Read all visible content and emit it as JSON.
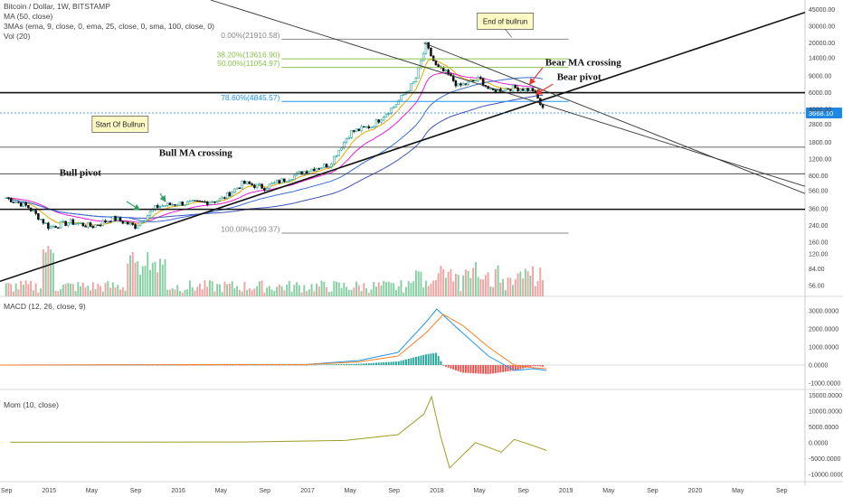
{
  "legend": {
    "symbol": "Bitcoin / Dollar, 1W, BITSTAMP",
    "ma": "MA (50, close)",
    "mas3": "3MAs (ema, 9, close, 0, ema, 25, close, 0, sma, 100, close, 0)",
    "vol": "Vol (20)",
    "macd": "MACD (12, 26, close, 9)",
    "mom": "Mom (10, close)"
  },
  "colors": {
    "candle_up": "#26a69a",
    "candle_down": "#111111",
    "ema9": "#e6a700",
    "ema25": "#e91ed0",
    "sma100": "#3f51b5",
    "ma50": "#3b6fd1",
    "vol_up": "#86cfa3",
    "vol_down": "#f1a3a3",
    "macd_line": "#2196f3",
    "signal_line": "#ff7f27",
    "hist_up": "#26a69a",
    "hist_down": "#ef5350",
    "mom_line": "#9e9d24",
    "fib_gray": "#888888",
    "fib_green": "#8bc34a",
    "fib_blue": "#2196f3",
    "price_tag": "#1e88e5",
    "arrow_green": "#2e9e5e",
    "arrow_red": "#e53935"
  },
  "chart_data": [
    {
      "type": "candlestick",
      "title": "Bitcoin / Dollar, 1W, BITSTAMP",
      "y_scale": "log",
      "y_ticks": [
        "45000.00",
        "30000.00",
        "20000.00",
        "14000.00",
        "9000.00",
        "6000.00",
        "4000.00",
        "2800.00",
        "1800.00",
        "1200.00",
        "800.00",
        "560.00",
        "360.00",
        "240.00",
        "160.00",
        "120.00",
        "84.00",
        "56.00"
      ],
      "y_tick_values": [
        45000,
        30000,
        20000,
        14000,
        9000,
        6000,
        4000,
        2800,
        1800,
        1200,
        800,
        560,
        360,
        240,
        160,
        120,
        84,
        56
      ],
      "x_ticks": [
        "Sep",
        "2015",
        "May",
        "Sep",
        "2016",
        "May",
        "Sep",
        "2017",
        "May",
        "Sep",
        "2018",
        "May",
        "Sep",
        "2019",
        "May",
        "Sep",
        "2020",
        "May",
        "Sep"
      ],
      "last_price": "3668.10",
      "price_path": [
        [
          "2014-09",
          470
        ],
        [
          "2014-11",
          380
        ],
        [
          "2015-01",
          230
        ],
        [
          "2015-03",
          260
        ],
        [
          "2015-05",
          235
        ],
        [
          "2015-07",
          285
        ],
        [
          "2015-09",
          235
        ],
        [
          "2015-11",
          380
        ],
        [
          "2016-01",
          410
        ],
        [
          "2016-03",
          415
        ],
        [
          "2016-05",
          450
        ],
        [
          "2016-07",
          670
        ],
        [
          "2016-09",
          605
        ],
        [
          "2016-11",
          740
        ],
        [
          "2017-01",
          920
        ],
        [
          "2017-03",
          1050
        ],
        [
          "2017-05",
          2300
        ],
        [
          "2017-07",
          2700
        ],
        [
          "2017-09",
          4300
        ],
        [
          "2017-11",
          8000
        ],
        [
          "2017-12",
          19000
        ],
        [
          "2018-01",
          11000
        ],
        [
          "2018-02",
          9500
        ],
        [
          "2018-03",
          7000
        ],
        [
          "2018-05",
          8400
        ],
        [
          "2018-06",
          6200
        ],
        [
          "2018-08",
          6800
        ],
        [
          "2018-10",
          6400
        ],
        [
          "2018-11",
          3668
        ]
      ],
      "fib_levels": [
        {
          "label": "0.00%(21910.58)",
          "value": 21910.58
        },
        {
          "label": "38.20%(13616.90)",
          "value": 13616.9
        },
        {
          "label": "50.00%(11054.97)",
          "value": 11054.97
        },
        {
          "label": "78.60%(4845.57)",
          "value": 4845.57
        },
        {
          "label": "100.00%(199.37)",
          "value": 199.37
        }
      ],
      "annotations": {
        "start_bullrun": "Start Of Bullrun",
        "end_bullrun": "End of bullrun",
        "bull_ma_crossing": "Bull MA crossing",
        "bull_pivot": "Bull pivot",
        "bear_ma_crossing": "Bear MA crossing",
        "bear_pivot": "Bear pivot"
      }
    },
    {
      "type": "line",
      "title": "MACD (12, 26, close, 9)",
      "y_ticks": [
        "3000.0000",
        "2000.0000",
        "1000.0000",
        "0.0000",
        "-1000.0000"
      ],
      "y_tick_values": [
        3000,
        2000,
        1000,
        0,
        -1000
      ],
      "series": [
        {
          "name": "MACD",
          "values": [
            [
              2017.0,
              40
            ],
            [
              2017.4,
              250
            ],
            [
              2017.7,
              700
            ],
            [
              2017.92,
              2400
            ],
            [
              2018.0,
              3100
            ],
            [
              2018.15,
              2100
            ],
            [
              2018.4,
              500
            ],
            [
              2018.6,
              -300
            ],
            [
              2018.75,
              -200
            ],
            [
              2018.85,
              -300
            ]
          ]
        },
        {
          "name": "Signal",
          "values": [
            [
              2017.0,
              30
            ],
            [
              2017.4,
              180
            ],
            [
              2017.7,
              500
            ],
            [
              2017.92,
              1800
            ],
            [
              2018.05,
              2800
            ],
            [
              2018.2,
              2200
            ],
            [
              2018.4,
              1000
            ],
            [
              2018.6,
              0
            ],
            [
              2018.75,
              -150
            ],
            [
              2018.85,
              -200
            ]
          ]
        }
      ]
    },
    {
      "type": "line",
      "title": "Mom (10, close)",
      "y_ticks": [
        "15000.0000",
        "10000.0000",
        "5000.0000",
        "0.0000",
        "-5000.0000",
        "-10000.0000"
      ],
      "y_tick_values": [
        15000,
        10000,
        5000,
        0,
        -5000,
        -10000
      ],
      "series": [
        {
          "name": "Mom",
          "values": [
            [
              2014.7,
              100
            ],
            [
              2016.5,
              200
            ],
            [
              2017.3,
              700
            ],
            [
              2017.7,
              2500
            ],
            [
              2017.9,
              9000
            ],
            [
              2017.96,
              14500
            ],
            [
              2018.03,
              2000
            ],
            [
              2018.1,
              -8000
            ],
            [
              2018.15,
              -6000
            ],
            [
              2018.3,
              0
            ],
            [
              2018.5,
              -3000
            ],
            [
              2018.6,
              1000
            ],
            [
              2018.75,
              -1000
            ],
            [
              2018.85,
              -2500
            ]
          ]
        }
      ]
    }
  ]
}
